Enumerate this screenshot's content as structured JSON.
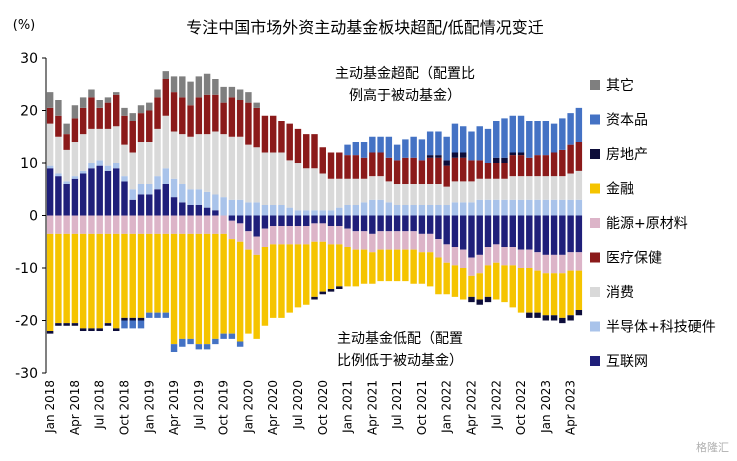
{
  "chart_data": {
    "type": "bar",
    "stacked": true,
    "title": "专注中国市场外资主动基金板块超配/低配情况变迁",
    "ylabel": "(%)",
    "ylim": [
      -30,
      30
    ],
    "yticks": [
      30,
      20,
      10,
      0,
      -10,
      -20,
      -30
    ],
    "grid": false,
    "legend_position": "right",
    "annotations": {
      "overweight": [
        "主动基金超配（配置比",
        "例高于被动基金）"
      ],
      "underweight": [
        "主动基金低配（配置",
        "比例低于被动基金）"
      ]
    },
    "watermark": "格隆汇",
    "categories": [
      "Jan 2018",
      "Feb 2018",
      "Mar 2018",
      "Apr 2018",
      "May 2018",
      "Jun 2018",
      "Jul 2018",
      "Aug 2018",
      "Sep 2018",
      "Oct 2018",
      "Nov 2018",
      "Dec 2018",
      "Jan 2019",
      "Feb 2019",
      "Mar 2019",
      "Apr 2019",
      "May 2019",
      "Jun 2019",
      "Jul 2019",
      "Aug 2019",
      "Sep 2019",
      "Oct 2019",
      "Nov 2019",
      "Dec 2019",
      "Jan 2020",
      "Feb 2020",
      "Mar 2020",
      "Apr 2020",
      "May 2020",
      "Jun 2020",
      "Jul 2020",
      "Aug 2020",
      "Sep 2020",
      "Oct 2020",
      "Nov 2020",
      "Dec 2020",
      "Jan 2021",
      "Feb 2021",
      "Mar 2021",
      "Apr 2021",
      "May 2021",
      "Jun 2021",
      "Jul 2021",
      "Aug 2021",
      "Sep 2021",
      "Oct 2021",
      "Nov 2021",
      "Dec 2021",
      "Jan 2022",
      "Feb 2022",
      "Mar 2022",
      "Apr 2022",
      "May 2022",
      "Jun 2022",
      "Jul 2022",
      "Aug 2022",
      "Sep 2022",
      "Oct 2022",
      "Nov 2022",
      "Dec 2022",
      "Jan 2023",
      "Feb 2023",
      "Mar 2023",
      "Apr 2023",
      "May 2023"
    ],
    "xticks_shown": [
      "Jan 2018",
      "Apr 2018",
      "Jul 2018",
      "Oct 2018",
      "Jan 2019",
      "Apr 2019",
      "Jul 2019",
      "Oct 2019",
      "Jan 2020",
      "Apr 2020",
      "Jul 2020",
      "Oct 2020",
      "Jan 2021",
      "Apr 2021",
      "Jul 2021",
      "Oct 2021",
      "Jan 2022",
      "Apr 2022",
      "Jul 2022",
      "Oct 2022",
      "Jan 2023",
      "Apr 2023"
    ],
    "series": [
      {
        "name": "互联网",
        "color": "#1f1f7a",
        "values": [
          9,
          7.5,
          6,
          7,
          8,
          9,
          9.5,
          8.5,
          9,
          6.5,
          3,
          4,
          4,
          5,
          6,
          3.5,
          2.5,
          2,
          2,
          1.5,
          1,
          0,
          -1,
          -1.5,
          -3,
          -4,
          -2.5,
          -2,
          -2,
          -2,
          -2,
          -2,
          -1.5,
          -1.5,
          -2,
          -2,
          -2.5,
          -3,
          -3,
          -3.5,
          -3,
          -3,
          -3,
          -3,
          -3,
          -3.5,
          -3.5,
          -4.5,
          -5.5,
          -6,
          -6.5,
          -8,
          -7.5,
          -6,
          -5.5,
          -6,
          -6,
          -6.5,
          -6.5,
          -7,
          -7.5,
          -7.5,
          -7.5,
          -7,
          -7
        ]
      },
      {
        "name": "半导体+科技硬件",
        "color": "#a9c3ea",
        "values": [
          0.5,
          0.5,
          0.5,
          0.5,
          0.5,
          1,
          1,
          1,
          1,
          1,
          2,
          2,
          2,
          2.5,
          3,
          3.5,
          3.5,
          3,
          3,
          3,
          3,
          3.5,
          3,
          3,
          2.5,
          2.5,
          2,
          2,
          2,
          1.5,
          1,
          1,
          1,
          1,
          1,
          1.5,
          2,
          2,
          2.5,
          3,
          3,
          2.5,
          2,
          2,
          2,
          2,
          2,
          2,
          2,
          2.5,
          2.5,
          2.5,
          3,
          3,
          3,
          3,
          3,
          3,
          3,
          3,
          3,
          3,
          3,
          3,
          3
        ]
      },
      {
        "name": "消费",
        "color": "#d9d9d9",
        "values": [
          8,
          7,
          6,
          6.5,
          7,
          6.5,
          6,
          7,
          7,
          6,
          7,
          8,
          8,
          9,
          10,
          9,
          9.5,
          10,
          10.5,
          11,
          12,
          12,
          12,
          12,
          11,
          10.5,
          10,
          10,
          10,
          9,
          9,
          8,
          8,
          7,
          6,
          5.5,
          5,
          5,
          4.5,
          4.5,
          4.5,
          4,
          4,
          4,
          4,
          4,
          4,
          4,
          3.5,
          4,
          4,
          4,
          4,
          4,
          4,
          4,
          4.5,
          4.5,
          4.5,
          4.5,
          4.5,
          4.5,
          4.5,
          5,
          5.5
        ]
      },
      {
        "name": "医疗保健",
        "color": "#8b1a1a",
        "values": [
          3,
          4,
          3,
          4.5,
          5,
          6,
          4,
          5,
          6,
          5.5,
          6,
          5.5,
          6,
          6,
          7,
          7.5,
          7,
          6,
          7,
          7.5,
          7,
          6,
          7.5,
          7,
          8,
          7.5,
          7,
          7,
          6,
          7,
          6.5,
          6.5,
          6.5,
          5,
          5,
          5,
          4.5,
          4.5,
          4,
          4.5,
          4.5,
          4.5,
          4.5,
          5,
          5,
          4.5,
          5,
          5,
          4,
          4.5,
          4.5,
          4,
          3.5,
          3,
          3,
          3,
          4,
          4,
          3.5,
          4,
          4,
          4.5,
          5,
          5.5,
          5.5
        ]
      },
      {
        "name": "能源+原材料",
        "color": "#dcb4c8",
        "values": [
          -3.5,
          -3.5,
          -3.5,
          -3.5,
          -3.5,
          -3.5,
          -3.5,
          -3.5,
          -3.5,
          -3.5,
          -3.5,
          -3.5,
          -3.5,
          -3.5,
          -3.5,
          -3.5,
          -3.5,
          -3.5,
          -3.5,
          -3.5,
          -3.5,
          -3.5,
          -3.5,
          -3.5,
          -3.5,
          -3.5,
          -3.5,
          -3.5,
          -3.5,
          -3.5,
          -3.5,
          -3.5,
          -3.5,
          -3.5,
          -3.5,
          -3.5,
          -3.5,
          -3.5,
          -3.5,
          -3.5,
          -3.5,
          -3.5,
          -3.5,
          -3.5,
          -3.5,
          -3.5,
          -3.5,
          -3.5,
          -3.5,
          -3.5,
          -3.5,
          -3.5,
          -3.5,
          -3.5,
          -3.5,
          -3.5,
          -3.5,
          -3.5,
          -3.5,
          -3.5,
          -3.5,
          -3.5,
          -3.5,
          -3.5,
          -3.5
        ]
      },
      {
        "name": "金融",
        "color": "#f5c400",
        "values": [
          -18.5,
          -17,
          -17,
          -17,
          -18,
          -18,
          -18,
          -17,
          -18,
          -16,
          -16,
          -16,
          -15,
          -15,
          -15,
          -21,
          -20,
          -20,
          -21,
          -21,
          -20,
          -19,
          -18,
          -19,
          -16,
          -16,
          -15,
          -14,
          -14,
          -13,
          -12,
          -11.5,
          -10.5,
          -9.5,
          -8.5,
          -8,
          -7.5,
          -7,
          -6.5,
          -6,
          -6,
          -6,
          -6,
          -6,
          -6.5,
          -6,
          -6.5,
          -7,
          -6,
          -6,
          -6,
          -4,
          -5,
          -6,
          -7,
          -7,
          -8,
          -8.5,
          -8.5,
          -8,
          -8,
          -8,
          -8.5,
          -8.5,
          -7.5
        ]
      },
      {
        "name": "房地产",
        "color": "#0d0d3a",
        "values": [
          -0.5,
          -0.5,
          -0.5,
          -0.5,
          -0.5,
          -0.5,
          -0.5,
          -0.5,
          -0.5,
          -0.5,
          -0.5,
          -0.5,
          0,
          0,
          0,
          0,
          0,
          0,
          0,
          0,
          0,
          0,
          0,
          0,
          0,
          0,
          0,
          0,
          0,
          0,
          0,
          0,
          -0.5,
          -0.5,
          -0.5,
          -0.5,
          0,
          0,
          0,
          0,
          0,
          0,
          0,
          0,
          0,
          0,
          0.5,
          0.5,
          1,
          1,
          1,
          -1,
          -1,
          -1,
          1,
          1,
          0.5,
          0.5,
          -1,
          -1,
          -1,
          -1,
          -1,
          -1,
          -1
        ]
      },
      {
        "name": "资本品",
        "color": "#4472c4",
        "values": [
          0,
          0,
          0,
          0,
          0,
          0,
          0,
          0,
          0,
          -1.5,
          -1.5,
          -1.5,
          -1,
          -1,
          -1,
          -1.5,
          -1.5,
          -1,
          -1,
          -1,
          -1,
          -1,
          -1,
          -1,
          0,
          0,
          0,
          0,
          0,
          0,
          0,
          0,
          0,
          0,
          0,
          0,
          2,
          2.5,
          3,
          3,
          3,
          4,
          3,
          3.5,
          4,
          4,
          4.5,
          4.5,
          4.5,
          5.5,
          5,
          5.5,
          6.5,
          6.5,
          7,
          7.5,
          7,
          7,
          7,
          6.5,
          6.5,
          5.5,
          6,
          6,
          6.5
        ]
      },
      {
        "name": "其它",
        "color": "#7f7f7f",
        "values": [
          3,
          3,
          2,
          2.5,
          2,
          1.5,
          1.5,
          1,
          0.5,
          1.5,
          1.5,
          1.5,
          1.5,
          1.5,
          1.5,
          3,
          4,
          4.5,
          4,
          4,
          3,
          3,
          2,
          2,
          2,
          1,
          0,
          0,
          0,
          0,
          0,
          0,
          0,
          0,
          0,
          0,
          0,
          0,
          0,
          0,
          0,
          0,
          0,
          0,
          0,
          0,
          0,
          0,
          0,
          0,
          0,
          0,
          0,
          0,
          0,
          0,
          0,
          0,
          0,
          0,
          0,
          0,
          0,
          0,
          0
        ]
      }
    ]
  }
}
